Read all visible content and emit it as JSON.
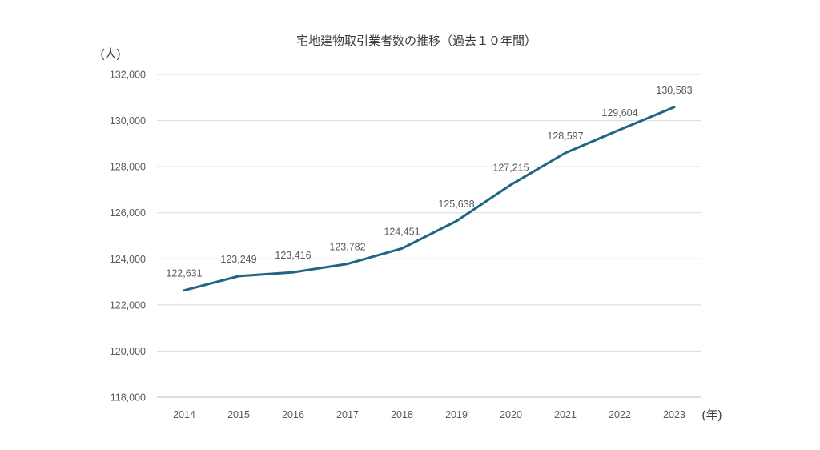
{
  "chart_data": {
    "type": "line",
    "title": "宅地建物取引業者数の推移（過去１０年間）",
    "ylabel": "(人)",
    "xlabel": "(年)",
    "ylim": [
      118000,
      132000
    ],
    "yticks": [
      118000,
      120000,
      122000,
      124000,
      126000,
      128000,
      130000,
      132000
    ],
    "ytick_labels": [
      "118,000",
      "120,000",
      "122,000",
      "124,000",
      "126,000",
      "128,000",
      "130,000",
      "132,000"
    ],
    "categories": [
      "2014",
      "2015",
      "2016",
      "2017",
      "2018",
      "2019",
      "2020",
      "2021",
      "2022",
      "2023"
    ],
    "series": [
      {
        "values": [
          122631,
          123249,
          123416,
          123782,
          124451,
          125638,
          127215,
          128597,
          129604,
          130583
        ],
        "labels": [
          "122,631",
          "123,249",
          "123,416",
          "123,782",
          "124,451",
          "125,638",
          "127,215",
          "128,597",
          "129,604",
          "130,583"
        ],
        "color": "#1f6682"
      }
    ],
    "grid": true,
    "legend": "none"
  }
}
